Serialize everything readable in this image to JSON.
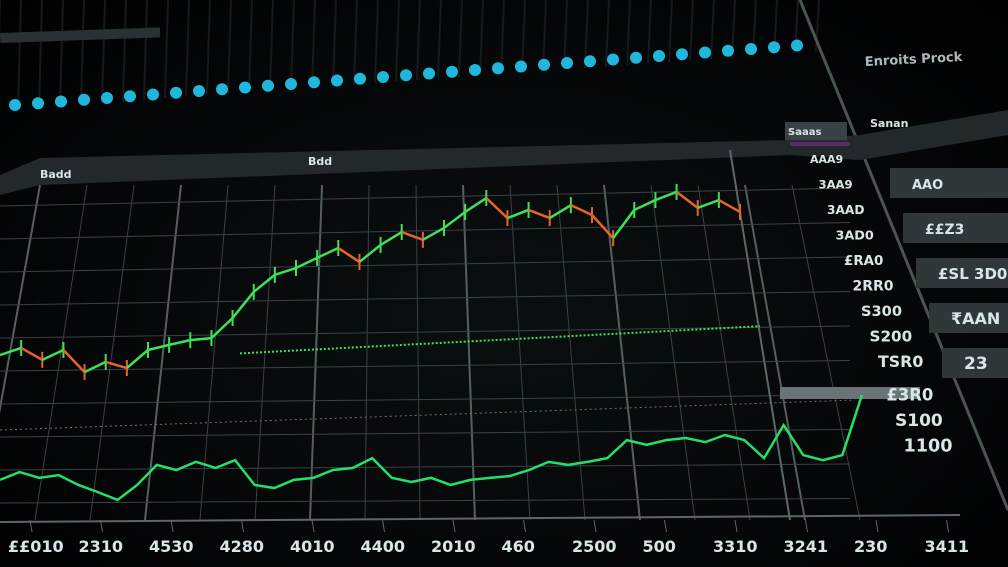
{
  "header": {
    "title": "Enroits Prock",
    "panel_label": "Sanan",
    "chart_tab": "Badd",
    "chart_title": "Bdd",
    "price_header": "Saaas"
  },
  "colors": {
    "up": "#3ee05a",
    "down": "#e8632a",
    "lower_line": "#22e06a",
    "dots": "#1fb7dc",
    "grid": "#3a4245",
    "frame": "#5c676b"
  },
  "price_column": [
    "AAA9",
    "3AA9",
    "3AAD",
    "3AD0",
    "£RA0",
    "2RR0",
    "S300",
    "S200",
    "TSR0",
    "£3R0",
    "S100",
    "1100"
  ],
  "side_panel": [
    "AAO",
    "££Z3",
    "£SL 3D0",
    "₹AAN",
    "23"
  ],
  "chart_data": {
    "type": "line",
    "title": "",
    "xlabel": "",
    "ylabel": "",
    "x_tick_labels": [
      "££010",
      "2310",
      "4530",
      "4280",
      "4010",
      "4400",
      "2010",
      "460",
      "2500",
      "500",
      "3310",
      "3241",
      "230",
      "3411"
    ],
    "right_tick_labels": [
      "AAA9",
      "3AA9",
      "3AAD",
      "3AD0",
      "£RA0",
      "2RR0",
      "S300",
      "S200",
      "TSR0",
      "£3R0",
      "S100",
      "1100"
    ],
    "ylim": [
      0,
      100
    ],
    "grid": true,
    "series": [
      {
        "style": "candlestick-line",
        "values": [
          48.5,
          50.6,
          47.1,
          50,
          43.5,
          46.5,
          44.7,
          50,
          51.5,
          52.9,
          53.5,
          59.4,
          67.1,
          72.1,
          74.1,
          77.1,
          80,
          75.9,
          80.9,
          84.7,
          82.4,
          85.9,
          90.6,
          94.7,
          88.8,
          91.2,
          88.8,
          92.6,
          89.7,
          82.9,
          91.2,
          94.1,
          96.5,
          91.8,
          94.1,
          90.6
        ]
      },
      {
        "style": "dotted",
        "values": [
          49,
          57
        ]
      },
      {
        "style": "line",
        "values": [
          11.8,
          14.1,
          12.4,
          13.2,
          10.3,
          8.2,
          5.9,
          10.3,
          16.2,
          14.7,
          17.1,
          15.3,
          17.6,
          10.3,
          9.4,
          11.8,
          12.4,
          14.7,
          15.3,
          18.2,
          12.4,
          11.2,
          12.4,
          10.3,
          11.8,
          12.4,
          12.9,
          14.7,
          17.1,
          16.2,
          17.1,
          18.2,
          23.5,
          22.1,
          23.5,
          24.1,
          22.9,
          25,
          23.5,
          18.2,
          27.9,
          19.1,
          17.6,
          19.1,
          36.8
        ]
      }
    ]
  }
}
